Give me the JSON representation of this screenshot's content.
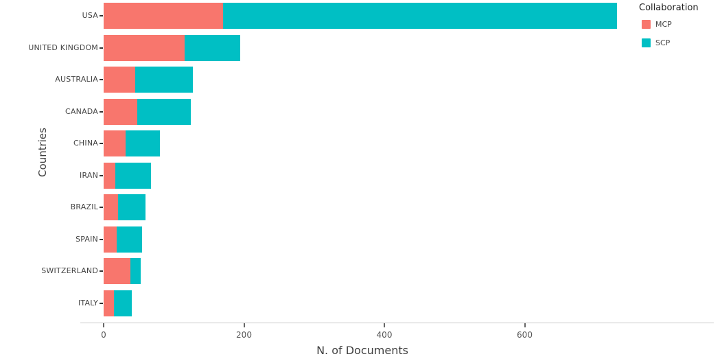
{
  "chart_data": {
    "type": "bar",
    "orientation": "horizontal",
    "stacked": true,
    "title": "",
    "xlabel": "N. of Documents",
    "ylabel": "Countries",
    "legend_title": "Collaboration",
    "legend_position": "top-right",
    "grid": false,
    "categories": [
      "USA",
      "UNITED KINGDOM",
      "AUSTRALIA",
      "CANADA",
      "CHINA",
      "IRAN",
      "BRAZIL",
      "SPAIN",
      "SWITZERLAND",
      "ITALY"
    ],
    "series": [
      {
        "name": "MCP",
        "color": "#f8766d",
        "values": [
          170,
          115,
          45,
          48,
          31,
          17,
          21,
          19,
          38,
          15
        ]
      },
      {
        "name": "SCP",
        "color": "#00bfc4",
        "values": [
          562,
          80,
          82,
          76,
          49,
          50,
          39,
          36,
          15,
          25
        ]
      }
    ],
    "x_ticks": [
      0,
      200,
      400,
      600
    ],
    "xlim": [
      0,
      760
    ]
  }
}
